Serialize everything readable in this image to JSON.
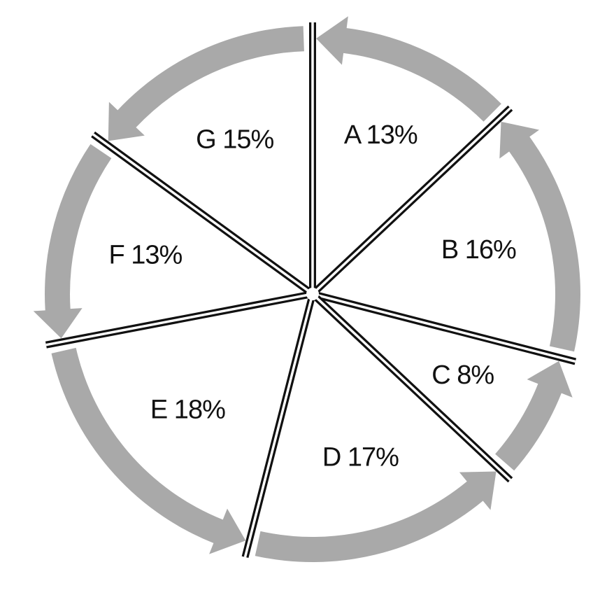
{
  "chart_data": {
    "type": "pie",
    "title": "",
    "direction": "counterclockwise",
    "slices": [
      {
        "label": "A",
        "value": 13,
        "display": "A 13%"
      },
      {
        "label": "B",
        "value": 16,
        "display": "B 16%"
      },
      {
        "label": "C",
        "value": 8,
        "display": "C 8%"
      },
      {
        "label": "D",
        "value": 17,
        "display": "D 17%"
      },
      {
        "label": "E",
        "value": 18,
        "display": "E 18%"
      },
      {
        "label": "F",
        "value": 13,
        "display": "F 13%"
      },
      {
        "label": "G",
        "value": 15,
        "display": "G 15%"
      }
    ],
    "colors": {
      "arrow": "#a9a9a9",
      "divider": "#111111",
      "background": "#ffffff",
      "text": "#111111"
    }
  }
}
